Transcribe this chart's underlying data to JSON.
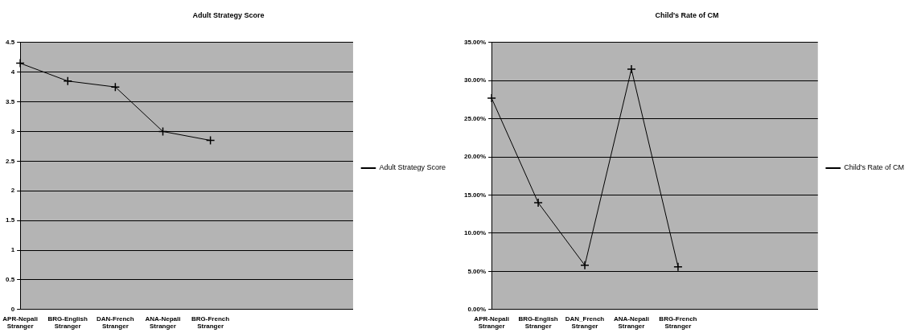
{
  "chart_data": [
    {
      "type": "line",
      "title": "Adult Strategy Score",
      "categories": [
        "APR-Nepali Stranger",
        "BRG-English Stranger",
        "DAN-French Stranger",
        "ANA-Nepali Stranger",
        "BRG-French Stranger",
        null,
        null,
        null
      ],
      "series": [
        {
          "name": "Adult Strategy Score",
          "color": "#000000",
          "values": [
            4.15,
            3.85,
            3.75,
            3.0,
            2.85,
            null,
            null,
            null
          ]
        }
      ],
      "ylim": [
        0,
        4.5
      ],
      "yticks": [
        0,
        0.5,
        1,
        1.5,
        2,
        2.5,
        3,
        3.5,
        4,
        4.5
      ],
      "grid": "y",
      "legend": "right",
      "marker": "cross",
      "line_style": "solid"
    },
    {
      "type": "line",
      "title": "Child's Rate of CM",
      "categories": [
        "APR-Nepali Stranger",
        "BRG-English Stranger",
        "DAN_French Stranger",
        "ANA-Nepali Stranger",
        "BRG-French Stranger",
        null,
        null,
        null
      ],
      "series": [
        {
          "name": "Child's Rate of CM",
          "color": "#000000",
          "values": [
            27.7,
            14,
            5.8,
            31.5,
            5.6,
            null,
            null,
            null
          ]
        }
      ],
      "ylim": [
        0,
        35
      ],
      "yticks": [
        {
          "value": 0,
          "label": "0.00%"
        },
        {
          "value": 5,
          "label": "5.00%"
        },
        {
          "value": 10,
          "label": "10.00%"
        },
        {
          "value": 15,
          "label": "15.00%"
        },
        {
          "value": 20,
          "label": "20.00%"
        },
        {
          "value": 25,
          "label": "25.00%"
        },
        {
          "value": 30,
          "label": "30.00%"
        },
        {
          "value": 35,
          "label": "35.00%"
        }
      ],
      "grid": "y",
      "legend": "right",
      "marker": "cross",
      "line_style": "solid"
    }
  ]
}
